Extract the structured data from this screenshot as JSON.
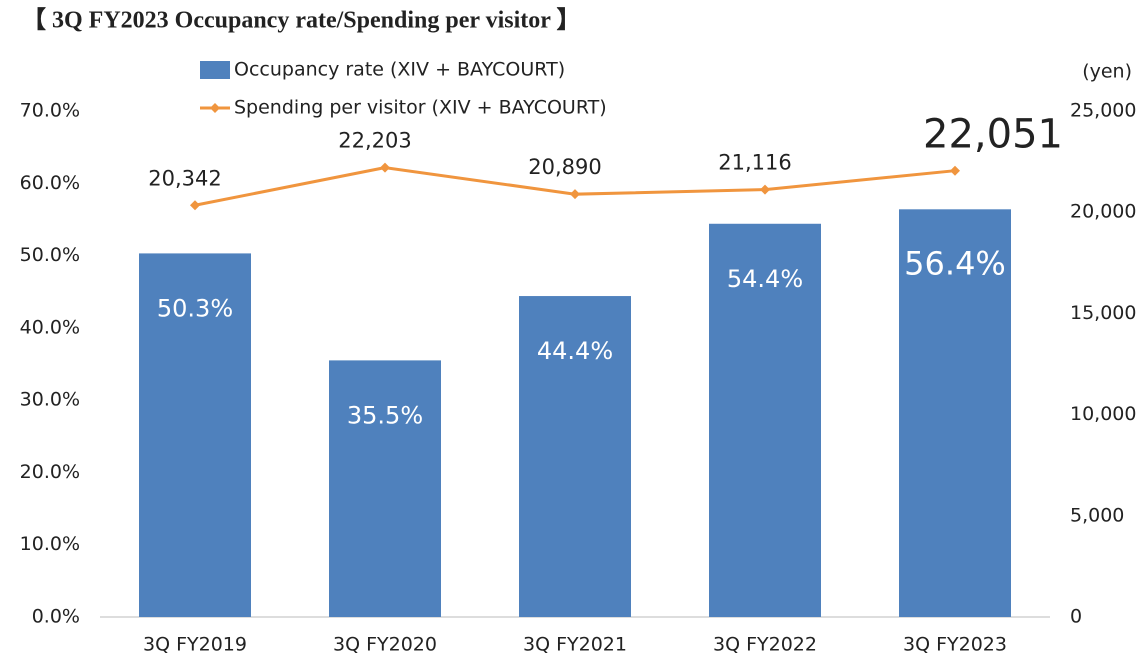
{
  "chart_data": {
    "type": "bar-line",
    "title": "【 3Q FY2023 Occupancy rate/Spending per visitor 】",
    "y2_label": "(yen)",
    "categories": [
      "3Q FY2019",
      "3Q FY2020",
      "3Q FY2021",
      "3Q FY2022",
      "3Q FY2023"
    ],
    "series": [
      {
        "name": "Occupancy rate (XIV + BAYCOURT)",
        "type": "bar",
        "color": "#4f81bd",
        "values": [
          50.3,
          35.5,
          44.4,
          54.4,
          56.4
        ],
        "value_labels": [
          "50.3%",
          "35.5%",
          "44.4%",
          "54.4%",
          "56.4%"
        ]
      },
      {
        "name": "Spending per visitor (XIV + BAYCOURT)",
        "type": "line",
        "axis": "y2",
        "color": "#f0953e",
        "values": [
          20342,
          22203,
          20890,
          21116,
          22051
        ],
        "value_labels": [
          "20,342",
          "22,203",
          "20,890",
          "21,116",
          "22,051"
        ]
      }
    ],
    "ylim": [
      0,
      70
    ],
    "yticks": [
      {
        "value": 0,
        "label": "0.0%"
      },
      {
        "value": 10,
        "label": "10.0%"
      },
      {
        "value": 20,
        "label": "20.0%"
      },
      {
        "value": 30,
        "label": "30.0%"
      },
      {
        "value": 40,
        "label": "40.0%"
      },
      {
        "value": 50,
        "label": "50.0%"
      },
      {
        "value": 60,
        "label": "60.0%"
      },
      {
        "value": 70,
        "label": "70.0%"
      }
    ],
    "y2lim": [
      0,
      25000
    ],
    "y2ticks": [
      0,
      {
        "value": 5000,
        "label": "5,000"
      },
      {
        "value": 10000,
        "label": "10,000"
      },
      {
        "value": 15000,
        "label": "15,000"
      },
      {
        "value": 20000,
        "label": "20,000"
      },
      {
        "value": 25000,
        "label": "25,000"
      }
    ],
    "grid": false,
    "legend": "top"
  }
}
